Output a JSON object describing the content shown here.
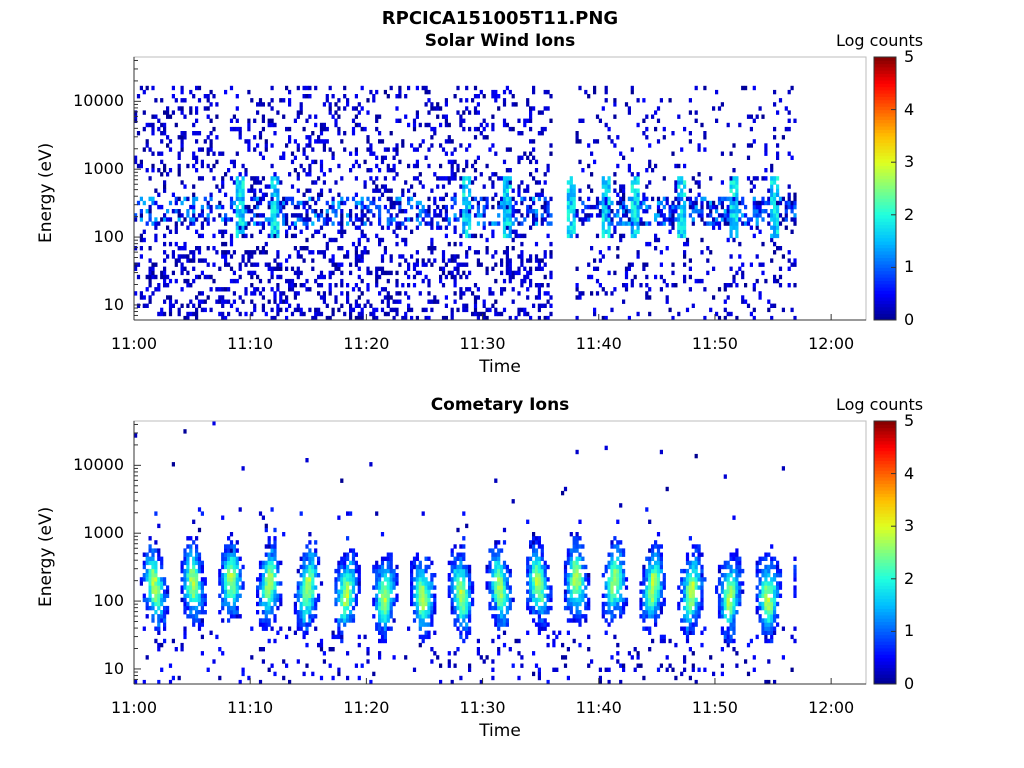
{
  "figure": {
    "title": "RPCICA151005T11.PNG"
  },
  "colorscale": {
    "stops": [
      "#00008f",
      "#0000ff",
      "#0060ff",
      "#00bfff",
      "#20ffdf",
      "#80ff80",
      "#dfff20",
      "#ffbf00",
      "#ff6000",
      "#ff0000",
      "#800000"
    ]
  },
  "chart_data": [
    {
      "type": "heatmap",
      "title": "Solar Wind Ions",
      "xlabel": "Time",
      "ylabel": "Energy (eV)",
      "x_ticks": [
        "11:00",
        "11:10",
        "11:20",
        "11:30",
        "11:40",
        "11:50",
        "12:00"
      ],
      "xlim_minutes": [
        0,
        63
      ],
      "y_ticks": [
        10,
        100,
        1000,
        10000
      ],
      "ylim": [
        6,
        45000
      ],
      "y_scale": "log",
      "colorbar": {
        "label": "Log counts",
        "range": [
          0,
          5
        ],
        "ticks": [
          0,
          1,
          2,
          3,
          4,
          5
        ]
      },
      "data_extent_minutes": [
        0,
        57
      ],
      "gap_minutes": [
        36,
        38
      ],
      "features": [
        {
          "kind": "scattered-noise",
          "energy_range": [
            10,
            15000
          ],
          "log_counts": [
            0,
            0.5
          ]
        },
        {
          "kind": "intensity-band",
          "energy_range": [
            150,
            400
          ],
          "log_counts": [
            1.0,
            2.0
          ]
        },
        {
          "kind": "bursts",
          "minutes": [
            9,
            12,
            28.5,
            32,
            37.5,
            40.5,
            43,
            47,
            51.5,
            55
          ],
          "log_counts_peak": 2.0
        }
      ]
    },
    {
      "type": "heatmap",
      "title": "Cometary Ions",
      "xlabel": "Time",
      "ylabel": "Energy (eV)",
      "x_ticks": [
        "11:00",
        "11:10",
        "11:20",
        "11:30",
        "11:40",
        "11:50",
        "12:00"
      ],
      "xlim_minutes": [
        0,
        63
      ],
      "y_ticks": [
        10,
        100,
        1000,
        10000
      ],
      "ylim": [
        6,
        45000
      ],
      "y_scale": "log",
      "colorbar": {
        "label": "Log counts",
        "range": [
          0,
          5
        ],
        "ticks": [
          0,
          1,
          2,
          3,
          4,
          5
        ]
      },
      "data_extent_minutes": [
        0,
        57
      ],
      "features": [
        {
          "kind": "periodic-bursts",
          "period_minutes": 3.3,
          "energy_range": [
            30,
            800
          ],
          "center_energy": 150,
          "log_counts_peak": 2.8
        }
      ]
    }
  ]
}
